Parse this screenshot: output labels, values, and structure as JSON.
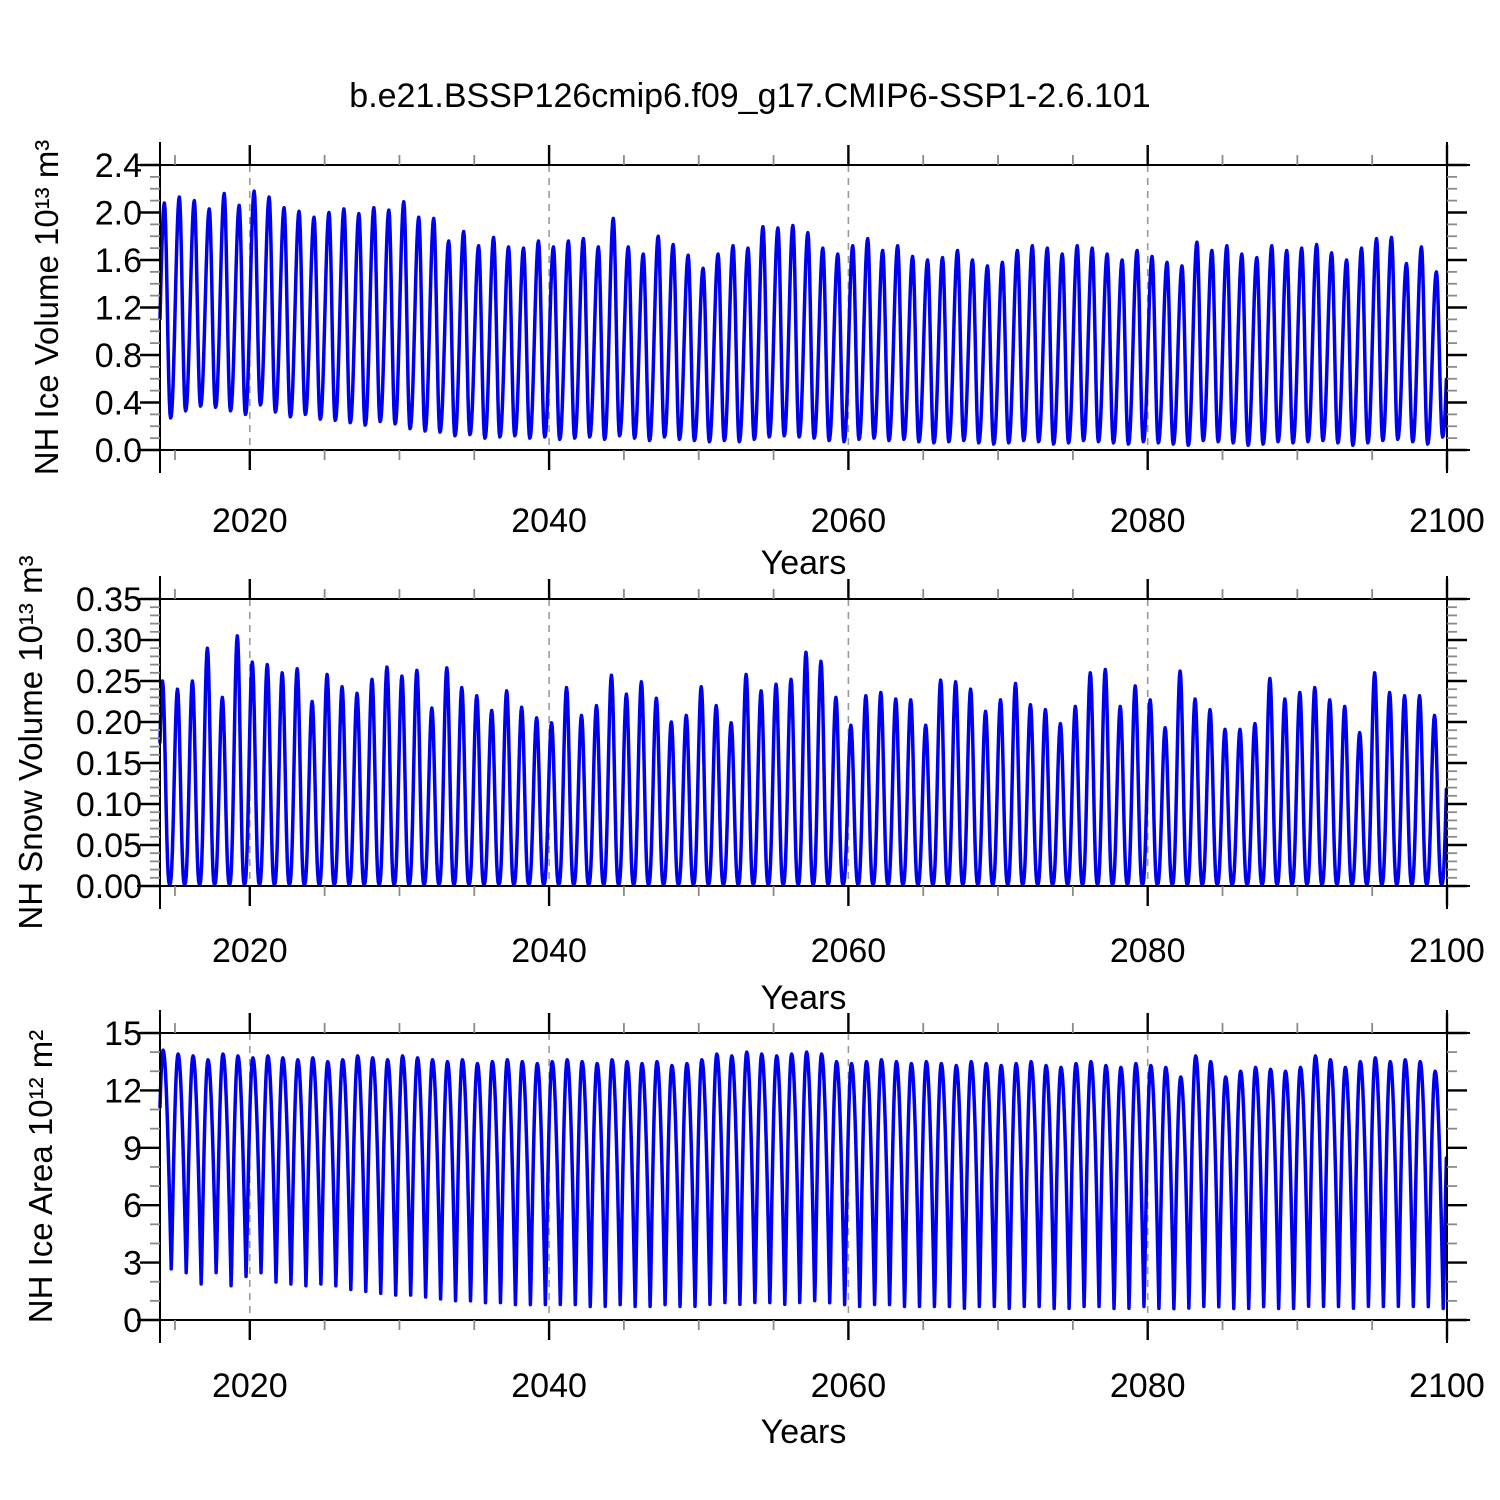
{
  "title": "b.e21.BSSP126cmip6.f09_g17.CMIP6-SSP1-2.6.101",
  "line_color": "#0000f0",
  "grid_color": "#9a9a9a",
  "axis_color": "#000000",
  "minor_tick_color": "#8a8a8a",
  "chart_data": [
    {
      "type": "line",
      "ylabel": "NH Ice Volume 10¹³ m³",
      "xlabel": "Years",
      "xlim": [
        2014,
        2100
      ],
      "ylim": [
        0,
        2.4
      ],
      "x_ticks": [
        2020,
        2040,
        2060,
        2080,
        2100
      ],
      "x_tick_labels": [
        "2020",
        "2040",
        "2060",
        "2080",
        "2100"
      ],
      "x_minor_step": 5,
      "y_ticks": [
        0,
        0.4,
        0.8,
        1.2,
        1.6,
        2.0,
        2.4
      ],
      "y_tick_labels": [
        "0.0",
        "0.4",
        "0.8",
        "1.2",
        "1.6",
        "2.0",
        "2.4"
      ],
      "y_minor_step": 0.1,
      "grid_x": [
        2020,
        2040,
        2060,
        2080
      ],
      "grid_on": true,
      "legend": null,
      "series": [
        {
          "name": "NH Ice Volume",
          "color": "#0000f0",
          "start_year": 2014,
          "seasonal": {
            "peak_phase": 0.2917,
            "fall_frac": 0.42,
            "sharpness": 1.1,
            "points_per_year": 24
          },
          "annual_max": [
            2.08,
            2.13,
            2.1,
            2.03,
            2.16,
            2.06,
            2.18,
            2.13,
            2.04,
            2.01,
            1.96,
            2.0,
            2.03,
            1.99,
            2.04,
            2.02,
            2.09,
            1.96,
            1.95,
            1.76,
            1.84,
            1.72,
            1.79,
            1.71,
            1.7,
            1.76,
            1.71,
            1.76,
            1.78,
            1.71,
            1.95,
            1.71,
            1.65,
            1.8,
            1.73,
            1.64,
            1.53,
            1.65,
            1.72,
            1.7,
            1.88,
            1.87,
            1.89,
            1.83,
            1.7,
            1.65,
            1.72,
            1.78,
            1.68,
            1.72,
            1.63,
            1.6,
            1.62,
            1.68,
            1.6,
            1.55,
            1.58,
            1.68,
            1.72,
            1.7,
            1.65,
            1.72,
            1.7,
            1.65,
            1.6,
            1.68,
            1.63,
            1.58,
            1.55,
            1.75,
            1.68,
            1.72,
            1.65,
            1.62,
            1.72,
            1.68,
            1.7,
            1.73,
            1.66,
            1.6,
            1.7,
            1.78,
            1.79,
            1.57,
            1.71,
            1.5
          ],
          "annual_min": [
            0.27,
            0.33,
            0.37,
            0.36,
            0.33,
            0.3,
            0.38,
            0.32,
            0.28,
            0.3,
            0.26,
            0.25,
            0.23,
            0.21,
            0.24,
            0.22,
            0.18,
            0.16,
            0.15,
            0.12,
            0.13,
            0.1,
            0.11,
            0.12,
            0.1,
            0.11,
            0.09,
            0.1,
            0.11,
            0.09,
            0.12,
            0.1,
            0.08,
            0.11,
            0.09,
            0.08,
            0.07,
            0.08,
            0.07,
            0.09,
            0.11,
            0.12,
            0.11,
            0.1,
            0.08,
            0.07,
            0.09,
            0.1,
            0.08,
            0.09,
            0.07,
            0.06,
            0.07,
            0.08,
            0.06,
            0.05,
            0.06,
            0.08,
            0.07,
            0.05,
            0.06,
            0.08,
            0.07,
            0.06,
            0.05,
            0.07,
            0.06,
            0.05,
            0.04,
            0.08,
            0.07,
            0.06,
            0.04,
            0.05,
            0.07,
            0.06,
            0.07,
            0.08,
            0.06,
            0.04,
            0.06,
            0.08,
            0.09,
            0.07,
            0.05,
            0.11
          ]
        }
      ]
    },
    {
      "type": "line",
      "ylabel": "NH Snow Volume 10¹³ m³",
      "xlabel": "Years",
      "xlim": [
        2014,
        2100
      ],
      "ylim": [
        0,
        0.35
      ],
      "x_ticks": [
        2020,
        2040,
        2060,
        2080,
        2100
      ],
      "x_tick_labels": [
        "2020",
        "2040",
        "2060",
        "2080",
        "2100"
      ],
      "x_minor_step": 5,
      "y_ticks": [
        0,
        0.05,
        0.1,
        0.15,
        0.2,
        0.25,
        0.3,
        0.35
      ],
      "y_tick_labels": [
        "0.00",
        "0.05",
        "0.10",
        "0.15",
        "0.20",
        "0.25",
        "0.30",
        "0.35"
      ],
      "y_minor_step": 0.01,
      "grid_x": [
        2020,
        2040,
        2060,
        2080
      ],
      "grid_on": true,
      "legend": null,
      "series": [
        {
          "name": "NH Snow Volume",
          "color": "#0000f0",
          "start_year": 2014,
          "seasonal": {
            "peak_phase": 0.1667,
            "fall_frac": 0.48,
            "sharpness": 1.35,
            "points_per_year": 24
          },
          "annual_max": [
            0.25,
            0.24,
            0.25,
            0.29,
            0.23,
            0.305,
            0.273,
            0.27,
            0.26,
            0.265,
            0.225,
            0.258,
            0.243,
            0.235,
            0.252,
            0.267,
            0.256,
            0.263,
            0.217,
            0.266,
            0.242,
            0.232,
            0.214,
            0.238,
            0.218,
            0.205,
            0.199,
            0.242,
            0.208,
            0.22,
            0.257,
            0.234,
            0.249,
            0.229,
            0.2,
            0.208,
            0.243,
            0.22,
            0.199,
            0.258,
            0.238,
            0.246,
            0.252,
            0.285,
            0.274,
            0.23,
            0.196,
            0.232,
            0.236,
            0.228,
            0.227,
            0.196,
            0.251,
            0.249,
            0.24,
            0.213,
            0.227,
            0.247,
            0.221,
            0.215,
            0.198,
            0.219,
            0.26,
            0.264,
            0.219,
            0.244,
            0.227,
            0.193,
            0.262,
            0.228,
            0.215,
            0.191,
            0.191,
            0.198,
            0.253,
            0.228,
            0.236,
            0.242,
            0.227,
            0.219,
            0.187,
            0.26,
            0.236,
            0.232,
            0.232,
            0.208
          ],
          "annual_min": 0.002
        }
      ]
    },
    {
      "type": "line",
      "ylabel": "NH Ice Area 10¹² m²",
      "xlabel": "Years",
      "xlim": [
        2014,
        2100
      ],
      "ylim": [
        0,
        15
      ],
      "x_ticks": [
        2020,
        2040,
        2060,
        2080,
        2100
      ],
      "x_tick_labels": [
        "2020",
        "2040",
        "2060",
        "2080",
        "2100"
      ],
      "x_minor_step": 5,
      "y_ticks": [
        0,
        3,
        6,
        9,
        12,
        15
      ],
      "y_tick_labels": [
        "0",
        "3",
        "6",
        "9",
        "12",
        "15"
      ],
      "y_minor_step": 1,
      "grid_x": [
        2020,
        2040,
        2060,
        2080
      ],
      "grid_on": true,
      "legend": null,
      "series": [
        {
          "name": "NH Ice Area",
          "color": "#0000f0",
          "start_year": 2014,
          "seasonal": {
            "peak_phase": 0.2083,
            "fall_frac": 0.55,
            "sharpness": 0.5,
            "points_per_year": 24
          },
          "annual_max": [
            14.1,
            13.9,
            13.8,
            13.6,
            13.9,
            13.8,
            13.7,
            13.8,
            13.7,
            13.6,
            13.7,
            13.5,
            13.6,
            13.8,
            13.7,
            13.6,
            13.8,
            13.7,
            13.6,
            13.5,
            13.6,
            13.4,
            13.5,
            13.6,
            13.5,
            13.4,
            13.5,
            13.6,
            13.5,
            13.4,
            13.6,
            13.5,
            13.4,
            13.5,
            13.3,
            13.4,
            13.6,
            13.9,
            13.8,
            14.0,
            13.9,
            13.8,
            13.9,
            14.0,
            13.9,
            13.5,
            13.4,
            13.5,
            13.6,
            13.5,
            13.4,
            13.5,
            13.4,
            13.3,
            13.5,
            13.4,
            13.3,
            13.4,
            13.5,
            13.3,
            13.2,
            13.4,
            13.5,
            13.3,
            13.2,
            13.4,
            13.3,
            13.2,
            12.7,
            13.8,
            13.5,
            12.7,
            13.0,
            13.2,
            13.1,
            13.0,
            13.2,
            13.8,
            13.6,
            13.2,
            13.5,
            13.7,
            13.5,
            13.6,
            13.5,
            13.0
          ],
          "annual_min": [
            2.4,
            2.2,
            1.6,
            2.2,
            1.5,
            2.0,
            2.2,
            1.7,
            1.6,
            1.5,
            1.6,
            1.5,
            1.3,
            1.2,
            1.1,
            1.0,
            1.0,
            0.9,
            0.8,
            0.7,
            0.7,
            0.6,
            0.6,
            0.5,
            0.5,
            0.5,
            0.5,
            0.5,
            0.4,
            0.4,
            0.5,
            0.4,
            0.4,
            0.5,
            0.4,
            0.4,
            0.5,
            0.6,
            0.5,
            0.6,
            0.6,
            0.5,
            0.6,
            0.7,
            0.6,
            0.5,
            0.4,
            0.5,
            0.5,
            0.4,
            0.4,
            0.4,
            0.4,
            0.3,
            0.4,
            0.4,
            0.3,
            0.4,
            0.4,
            0.3,
            0.3,
            0.4,
            0.4,
            0.3,
            0.3,
            0.4,
            0.3,
            0.3,
            0.3,
            0.4,
            0.4,
            0.3,
            0.3,
            0.4,
            0.3,
            0.3,
            0.4,
            0.4,
            0.4,
            0.3,
            0.4,
            0.4,
            0.4,
            0.4,
            0.4,
            0.3
          ]
        }
      ]
    }
  ]
}
